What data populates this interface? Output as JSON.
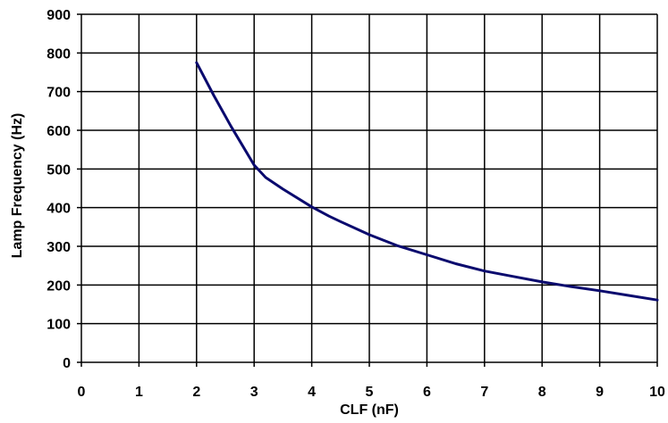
{
  "chart_data": {
    "type": "line",
    "title": "",
    "xlabel": "CLF (nF)",
    "ylabel": "Lamp Frequency (Hz)",
    "xlim": [
      0,
      10
    ],
    "ylim": [
      0,
      900
    ],
    "x_ticks": [
      0,
      1,
      2,
      3,
      4,
      5,
      6,
      7,
      8,
      9,
      10
    ],
    "y_ticks": [
      0,
      100,
      200,
      300,
      400,
      500,
      600,
      700,
      800,
      900
    ],
    "x_tick_labels": [
      "0",
      "1",
      "2",
      "3",
      "4",
      "5",
      "6",
      "7",
      "8",
      "9",
      "10"
    ],
    "y_tick_labels": [
      "0",
      "100",
      "200",
      "300",
      "400",
      "500",
      "600",
      "700",
      "800",
      "900"
    ],
    "grid": true,
    "legend": "none",
    "series": [
      {
        "color": "#0a0a6e",
        "x": [
          2.0,
          2.3,
          2.6,
          2.8,
          3.0,
          3.2,
          3.5,
          4.0,
          4.3,
          4.5,
          5.0,
          5.5,
          6.0,
          6.5,
          7.0,
          7.5,
          8.0,
          8.5,
          9.0,
          9.5,
          10.0
        ],
        "y": [
          775,
          690,
          610,
          560,
          510,
          478,
          448,
          402,
          378,
          364,
          330,
          301,
          278,
          255,
          236,
          222,
          208,
          196,
          185,
          173,
          161
        ]
      }
    ]
  }
}
